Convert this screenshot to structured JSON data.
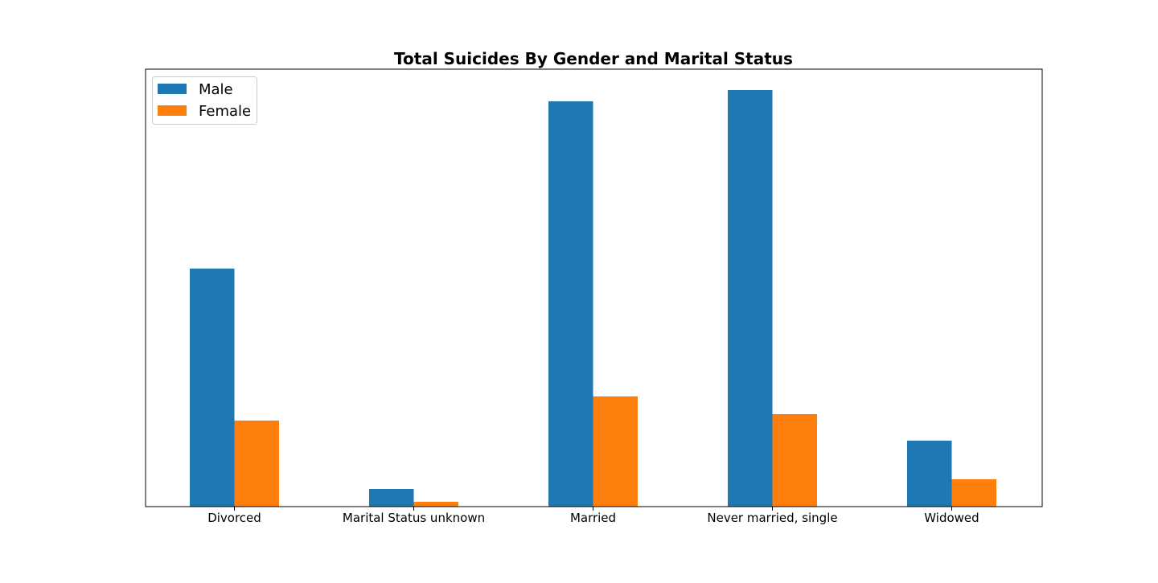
{
  "chart_data": {
    "type": "bar",
    "title": "Total Suicides By Gender and Marital Status",
    "xlabel": "",
    "ylabel": "",
    "categories": [
      "Divorced",
      "Marital Status unknown",
      "Married",
      "Never married, single",
      "Widowed"
    ],
    "series": [
      {
        "name": "Male",
        "color": "#1f77b4",
        "values": [
          296,
          22,
          504,
          518,
          82
        ]
      },
      {
        "name": "Female",
        "color": "#ff7f0e",
        "values": [
          107,
          6,
          137,
          115,
          34
        ]
      }
    ],
    "ylim": [
      0,
      544
    ],
    "grid": false,
    "legend_position": "top-left",
    "y_ticks_visible": false
  }
}
